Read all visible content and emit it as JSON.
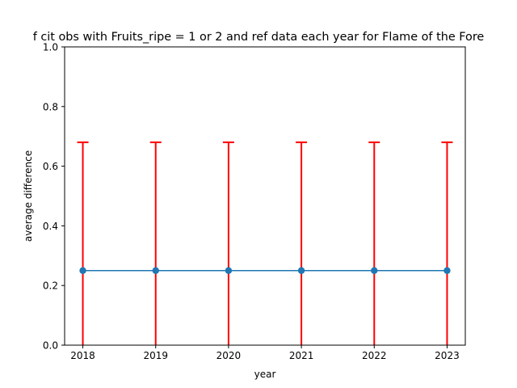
{
  "chart_data": {
    "type": "line",
    "title": "f cit obs with Fruits_ripe = 1 or 2 and ref data each year for Flame of the Fore",
    "xlabel": "year",
    "ylabel": "average difference",
    "x": [
      2018,
      2019,
      2020,
      2021,
      2022,
      2023
    ],
    "x_tick_labels": [
      "2018",
      "2019",
      "2020",
      "2021",
      "2022",
      "2023"
    ],
    "xlim": [
      2017.75,
      2023.25
    ],
    "ylim": [
      0.0,
      1.0
    ],
    "y_ticks": [
      0.0,
      0.2,
      0.4,
      0.6,
      0.8,
      1.0
    ],
    "y_tick_labels": [
      "0.0",
      "0.2",
      "0.4",
      "0.6",
      "0.8",
      "1.0"
    ],
    "series": [
      {
        "values": [
          0.25,
          0.25,
          0.25,
          0.25,
          0.25,
          0.25
        ],
        "error_upper": [
          0.68,
          0.68,
          0.68,
          0.68,
          0.68,
          0.68
        ],
        "error_lower": [
          0.0,
          0.0,
          0.0,
          0.0,
          0.0,
          0.0
        ],
        "line_color": "#1f77b4",
        "marker_color": "#1f77b4",
        "error_color": "#ff0000"
      }
    ],
    "grid": false,
    "legend": "none"
  }
}
